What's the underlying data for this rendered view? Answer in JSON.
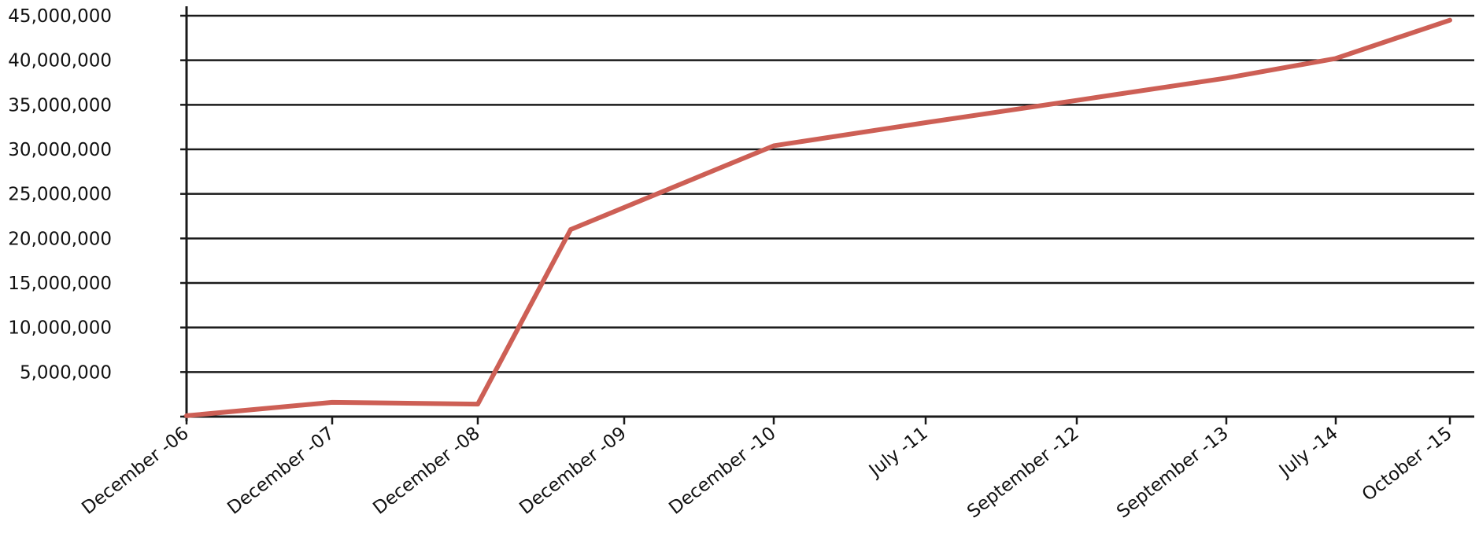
{
  "chart_data": {
    "type": "line",
    "title": "",
    "xlabel": "",
    "ylabel": "",
    "categories": [
      "December -06",
      "December -07",
      "December -08",
      "December -09",
      "December -10",
      "July -11",
      "September -12",
      "September -13",
      "July -14",
      "October -15"
    ],
    "y_ticks": [
      5000000,
      10000000,
      15000000,
      20000000,
      25000000,
      30000000,
      35000000,
      40000000,
      45000000
    ],
    "y_tick_labels": [
      "5,000,000",
      "10,000,000",
      "15,000,000",
      "20,000,000",
      "25,000,000",
      "30,000,000",
      "35,000,000",
      "40,000,000",
      "45,000,000"
    ],
    "ylim": [
      0,
      45000000
    ],
    "grid": true,
    "legend": "none",
    "series": [
      {
        "color": "#cd5f55",
        "points": [
          {
            "x": "December -06",
            "y": 100000
          },
          {
            "x": "December -07",
            "y": 1600000
          },
          {
            "x": "December -08",
            "y": 1400000
          },
          {
            "x": "between December -08 and December -09",
            "y": 21000000
          },
          {
            "x": "December -10",
            "y": 30400000
          },
          {
            "x": "July -11",
            "y": 33000000
          },
          {
            "x": "September -12",
            "y": 35500000
          },
          {
            "x": "September -13",
            "y": 38000000
          },
          {
            "x": "July -14",
            "y": 40200000
          },
          {
            "x": "October -15",
            "y": 44500000
          }
        ]
      }
    ]
  }
}
